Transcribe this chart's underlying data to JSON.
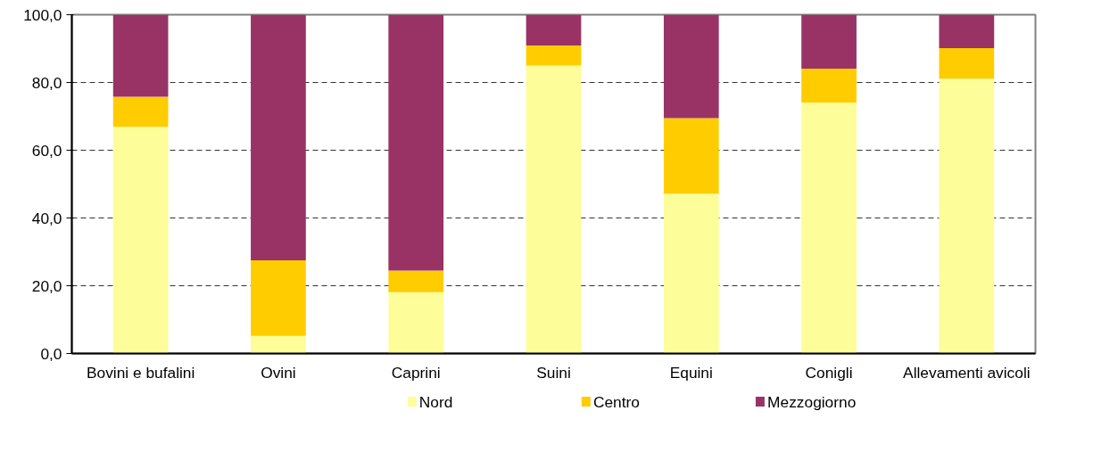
{
  "chart_data": {
    "type": "bar",
    "stacked": true,
    "categories": [
      "Bovini e bufalini",
      "Ovini",
      "Caprini",
      "Suini",
      "Equini",
      "Conigli",
      "Allevamenti avicoli"
    ],
    "series": [
      {
        "name": "Nord",
        "color": "#fdfd99",
        "values": [
          66.9,
          5.2,
          18.1,
          85.0,
          47.2,
          74.1,
          81.1
        ]
      },
      {
        "name": "Centro",
        "color": "#ffcc00",
        "values": [
          8.9,
          22.3,
          6.4,
          5.9,
          22.3,
          10.0,
          9.0
        ]
      },
      {
        "name": "Mezzogiorno",
        "color": "#993366",
        "values": [
          24.2,
          72.5,
          75.5,
          9.1,
          30.5,
          15.9,
          9.9
        ]
      }
    ],
    "ylim": [
      0,
      100
    ],
    "yticks": [
      {
        "value": 0,
        "label": "0,0"
      },
      {
        "value": 20,
        "label": "20,0"
      },
      {
        "value": 40,
        "label": "40,0"
      },
      {
        "value": 60,
        "label": "60,0"
      },
      {
        "value": 80,
        "label": "80,0"
      },
      {
        "value": 100,
        "label": "100,0"
      }
    ],
    "grid": "y",
    "legend": "bottom"
  }
}
